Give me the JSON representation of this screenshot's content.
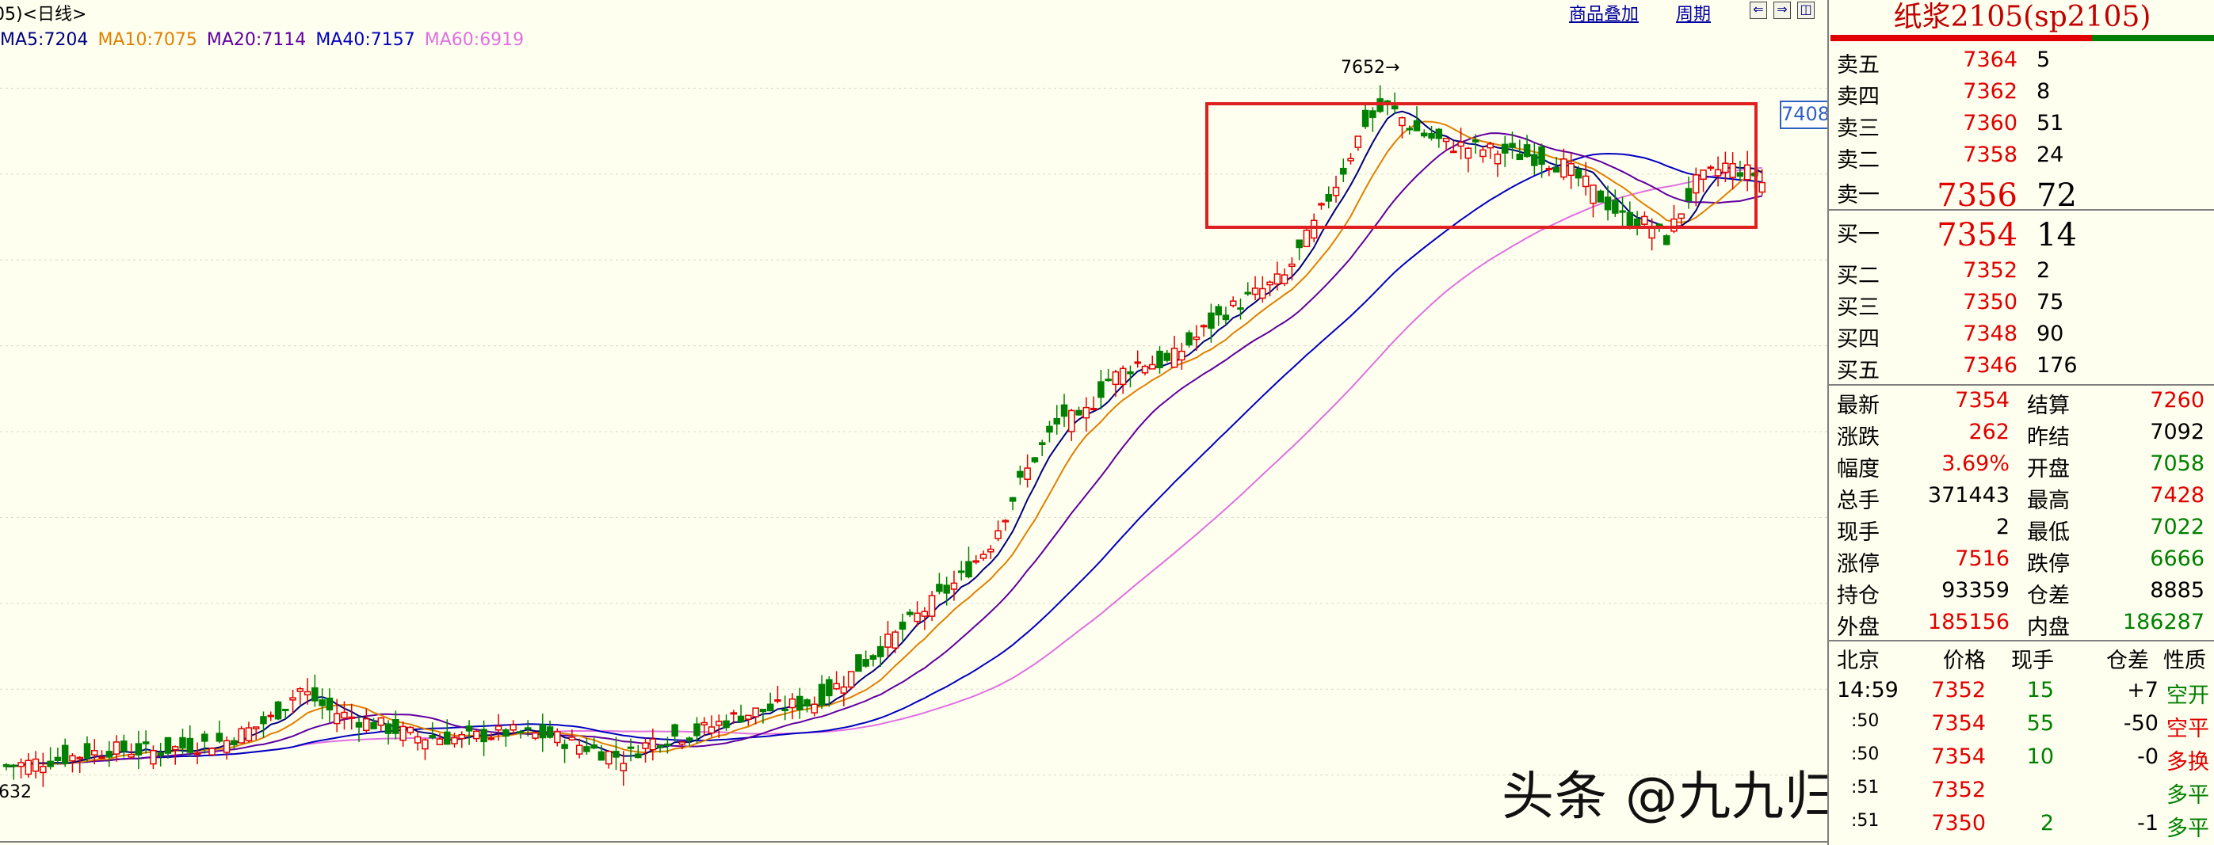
{
  "header": {
    "title": "05)<日线>",
    "menu_overlay": "商品叠加",
    "menu_period": "周期",
    "nav_left": "⇐",
    "nav_right": "⇒",
    "nav_other": "◫"
  },
  "ma_legend": [
    {
      "label": "MA5:7204",
      "color": "#000080"
    },
    {
      "label": "MA10:7075",
      "color": "#E08000"
    },
    {
      "label": "MA20:7114",
      "color": "#6000A0"
    },
    {
      "label": "MA40:7157",
      "color": "#0000C0"
    },
    {
      "label": "MA60:6919",
      "color": "#E070E0"
    }
  ],
  "chart_labels": {
    "high_label": "7652",
    "low_label": "632",
    "price_tag": "7408"
  },
  "chart_data": {
    "type": "candlestick",
    "ylim": [
      5850,
      7750
    ],
    "grid": true,
    "highlight_box": {
      "x_start_index": 142,
      "x_end_index": 212,
      "y_top": 7560,
      "y_bottom": 7250,
      "color": "#E02020"
    },
    "colors": {
      "up": "#E00000",
      "down": "#008000",
      "MA5": "#000080",
      "MA10": "#E08000",
      "MA20": "#6000A0",
      "MA40": "#0000C0",
      "MA60": "#E070E0"
    },
    "candles": []
  },
  "panel": {
    "title": "纸浆2105(sp2105)",
    "asks": [
      {
        "label": "卖五",
        "price": "7364",
        "vol": "5"
      },
      {
        "label": "卖四",
        "price": "7362",
        "vol": "8"
      },
      {
        "label": "卖三",
        "price": "7360",
        "vol": "51"
      },
      {
        "label": "卖二",
        "price": "7358",
        "vol": "24"
      },
      {
        "label": "卖一",
        "price": "7356",
        "vol": "72"
      }
    ],
    "bids": [
      {
        "label": "买一",
        "price": "7354",
        "vol": "14"
      },
      {
        "label": "买二",
        "price": "7352",
        "vol": "2"
      },
      {
        "label": "买三",
        "price": "7350",
        "vol": "75"
      },
      {
        "label": "买四",
        "price": "7348",
        "vol": "90"
      },
      {
        "label": "买五",
        "price": "7346",
        "vol": "176"
      }
    ],
    "stats": [
      {
        "l1": "最新",
        "v1": "7354",
        "c1": "#E00000",
        "l2": "结算",
        "v2": "7260",
        "c2": "#E00000"
      },
      {
        "l1": "涨跌",
        "v1": "262",
        "c1": "#E00000",
        "l2": "昨结",
        "v2": "7092",
        "c2": "#000000"
      },
      {
        "l1": "幅度",
        "v1": "3.69%",
        "c1": "#E00000",
        "l2": "开盘",
        "v2": "7058",
        "c2": "#008000"
      },
      {
        "l1": "总手",
        "v1": "371443",
        "c1": "#000000",
        "l2": "最高",
        "v2": "7428",
        "c2": "#E00000"
      },
      {
        "l1": "现手",
        "v1": "2",
        "c1": "#000000",
        "l2": "最低",
        "v2": "7022",
        "c2": "#008000"
      },
      {
        "l1": "涨停",
        "v1": "7516",
        "c1": "#E00000",
        "l2": "跌停",
        "v2": "6666",
        "c2": "#008000"
      },
      {
        "l1": "持仓",
        "v1": "93359",
        "c1": "#000000",
        "l2": "仓差",
        "v2": "8885",
        "c2": "#000000"
      },
      {
        "l1": "外盘",
        "v1": "185156",
        "c1": "#E00000",
        "l2": "内盘",
        "v2": "186287",
        "c2": "#008000"
      }
    ],
    "tick_header": {
      "time": "北京",
      "price": "价格",
      "vol": "现手",
      "diff": "仓差",
      "nature": "性质"
    },
    "ticks": [
      {
        "time": "14:59",
        "price": "7352",
        "pc": "#E00000",
        "vol": "15",
        "diff": "+7",
        "nature": "空开",
        "nc": "#008000"
      },
      {
        "time": ":50",
        "price": "7354",
        "pc": "#E00000",
        "vol": "55",
        "diff": "-50",
        "nature": "空平",
        "nc": "#E00000"
      },
      {
        "time": ":50",
        "price": "7354",
        "pc": "#E00000",
        "vol": "10",
        "diff": "-0",
        "nature": "多换",
        "nc": "#E00000"
      },
      {
        "time": ":51",
        "price": "7352",
        "pc": "#E00000",
        "vol": "",
        "diff": "",
        "nature": "多平",
        "nc": "#008000"
      },
      {
        "time": ":51",
        "price": "7350",
        "pc": "#E00000",
        "vol": "2",
        "diff": "-1",
        "nature": "多平",
        "nc": "#008000"
      }
    ]
  },
  "watermark": "头条 @九九归一期货徐子淇"
}
